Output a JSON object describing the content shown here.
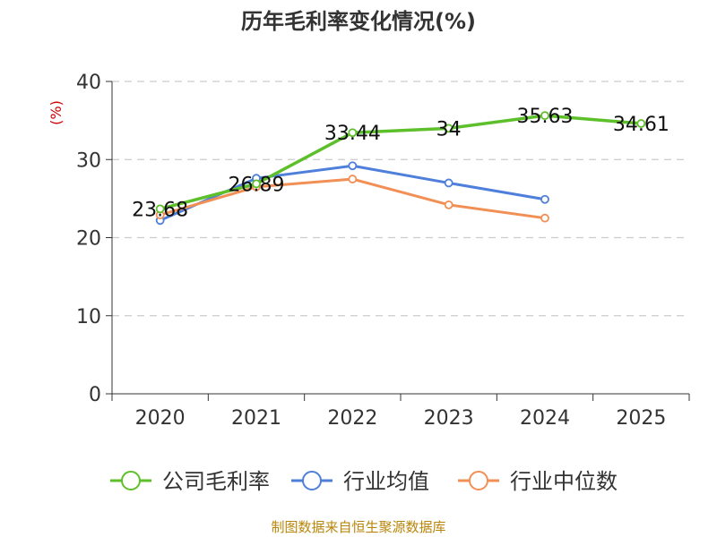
{
  "chart_data": {
    "type": "line",
    "title": "历年毛利率变化情况(%)",
    "ylabel": "(%)",
    "xlabel": "",
    "categories": [
      "2020",
      "2021",
      "2022",
      "2023",
      "2024",
      "2025"
    ],
    "ylim": [
      0,
      40
    ],
    "yticks": [
      0,
      10,
      20,
      30,
      40
    ],
    "grid": true,
    "legend_position": "bottom",
    "series": [
      {
        "name": "公司毛利率",
        "color": "#5dc02b",
        "values": [
          23.68,
          26.89,
          33.44,
          34,
          35.63,
          34.61
        ],
        "labels": [
          "23.68",
          "26.89",
          "33.44",
          "34",
          "35.63",
          "34.61"
        ]
      },
      {
        "name": "行业均值",
        "color": "#4e7fdb",
        "values": [
          22.2,
          27.6,
          29.2,
          27.0,
          24.9,
          null
        ]
      },
      {
        "name": "行业中位数",
        "color": "#f28f55",
        "values": [
          22.9,
          26.5,
          27.5,
          24.2,
          22.5,
          null
        ]
      }
    ]
  },
  "source_text": "制图数据来自恒生聚源数据库"
}
